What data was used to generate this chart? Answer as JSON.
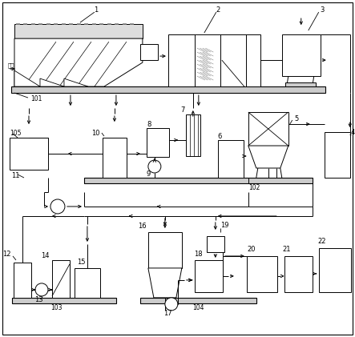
{
  "background_color": "#ffffff",
  "line_color": "#000000",
  "gray_fill": "#cccccc",
  "light_gray": "#aaaaaa",
  "fig_width": 4.43,
  "fig_height": 4.21,
  "dpi": 100
}
